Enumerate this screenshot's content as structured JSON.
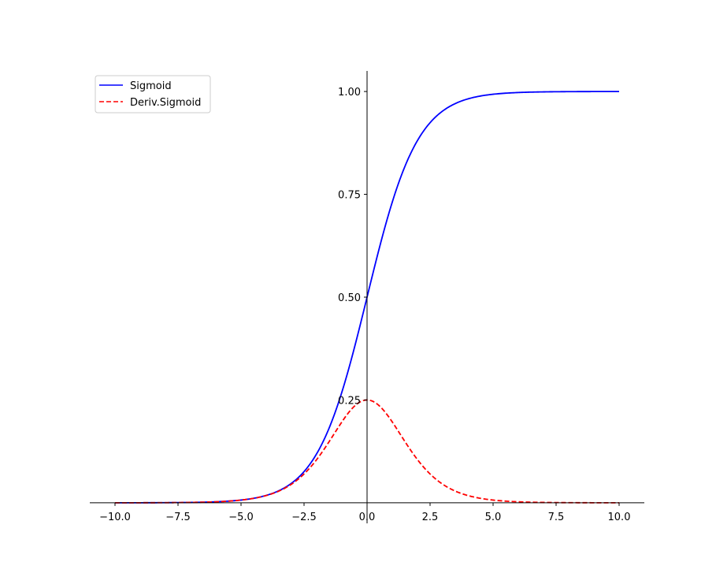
{
  "chart_data": {
    "type": "line",
    "title": "",
    "xlabel": "",
    "ylabel": "",
    "xlim": [
      -11.0,
      11.0
    ],
    "ylim": [
      -0.05,
      1.05
    ],
    "x_ticks": [
      -10.0,
      -7.5,
      -5.0,
      -2.5,
      0.0,
      2.5,
      5.0,
      7.5,
      10.0
    ],
    "x_tick_labels": [
      "−10.0",
      "−7.5",
      "−5.0",
      "−2.5",
      "0.0",
      "2.5",
      "5.0",
      "7.5",
      "10.0"
    ],
    "y_ticks": [
      0.25,
      0.5,
      0.75,
      1.0
    ],
    "y_tick_labels": [
      "0.25",
      "0.50",
      "0.75",
      "1.00"
    ],
    "x_range": [
      -10,
      10
    ],
    "grid": false,
    "spines": "centered at origin",
    "legend": "upper-left",
    "series": [
      {
        "name": "Sigmoid",
        "color": "#0000ff",
        "style": "solid",
        "x": [
          -10,
          -8,
          -6,
          -5,
          -4,
          -3,
          -2.5,
          -2,
          -1.5,
          -1,
          -0.5,
          0,
          0.5,
          1,
          1.5,
          2,
          2.5,
          3,
          4,
          5,
          6,
          8,
          10
        ],
        "y": [
          4.54e-05,
          0.000335,
          0.00247,
          0.00669,
          0.018,
          0.0474,
          0.0759,
          0.1192,
          0.1824,
          0.2689,
          0.3775,
          0.5,
          0.6225,
          0.7311,
          0.8176,
          0.8808,
          0.9241,
          0.9526,
          0.982,
          0.9933,
          0.9975,
          0.9997,
          0.99995
        ]
      },
      {
        "name": "Deriv.Sigmoid",
        "color": "#ff0000",
        "style": "dashed",
        "x": [
          -10,
          -8,
          -6,
          -5,
          -4,
          -3,
          -2.5,
          -2,
          -1.5,
          -1,
          -0.5,
          0,
          0.5,
          1,
          1.5,
          2,
          2.5,
          3,
          4,
          5,
          6,
          8,
          10
        ],
        "y": [
          4.54e-05,
          0.000335,
          0.00247,
          0.00665,
          0.0177,
          0.0452,
          0.0701,
          0.105,
          0.1491,
          0.1966,
          0.235,
          0.25,
          0.235,
          0.1966,
          0.1491,
          0.105,
          0.0701,
          0.0452,
          0.0177,
          0.00665,
          0.00247,
          0.000335,
          4.54e-05
        ]
      }
    ]
  }
}
